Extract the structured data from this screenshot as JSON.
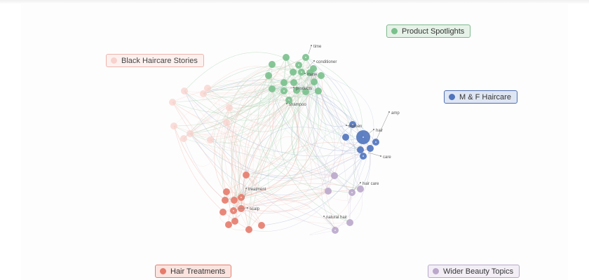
{
  "clusters": {
    "product_spotlights": {
      "label": "Product Spotlights",
      "color": "#79c08c"
    },
    "black_haircare": {
      "label": "Black Haircare Stories",
      "color": "#f8d2cc"
    },
    "mf_haircare": {
      "label": "M & F Haircare",
      "color": "#4f73bd"
    },
    "hair_treatments": {
      "label": "Hair Treatments",
      "color": "#e57b6b"
    },
    "wider_beauty": {
      "label": "Wider Beauty Topics",
      "color": "#baa7cb"
    }
  },
  "node_labels": {
    "time": "time",
    "conditioner": "conditioner",
    "mask": "mask",
    "products": "products",
    "shampoo": "shampoo",
    "amp": "amp",
    "women": "women",
    "hair": "hair",
    "care": "care",
    "treatment": "treatment",
    "scalp": "scalp",
    "hair_care": "hair care",
    "natural_hair": "natural hair"
  }
}
